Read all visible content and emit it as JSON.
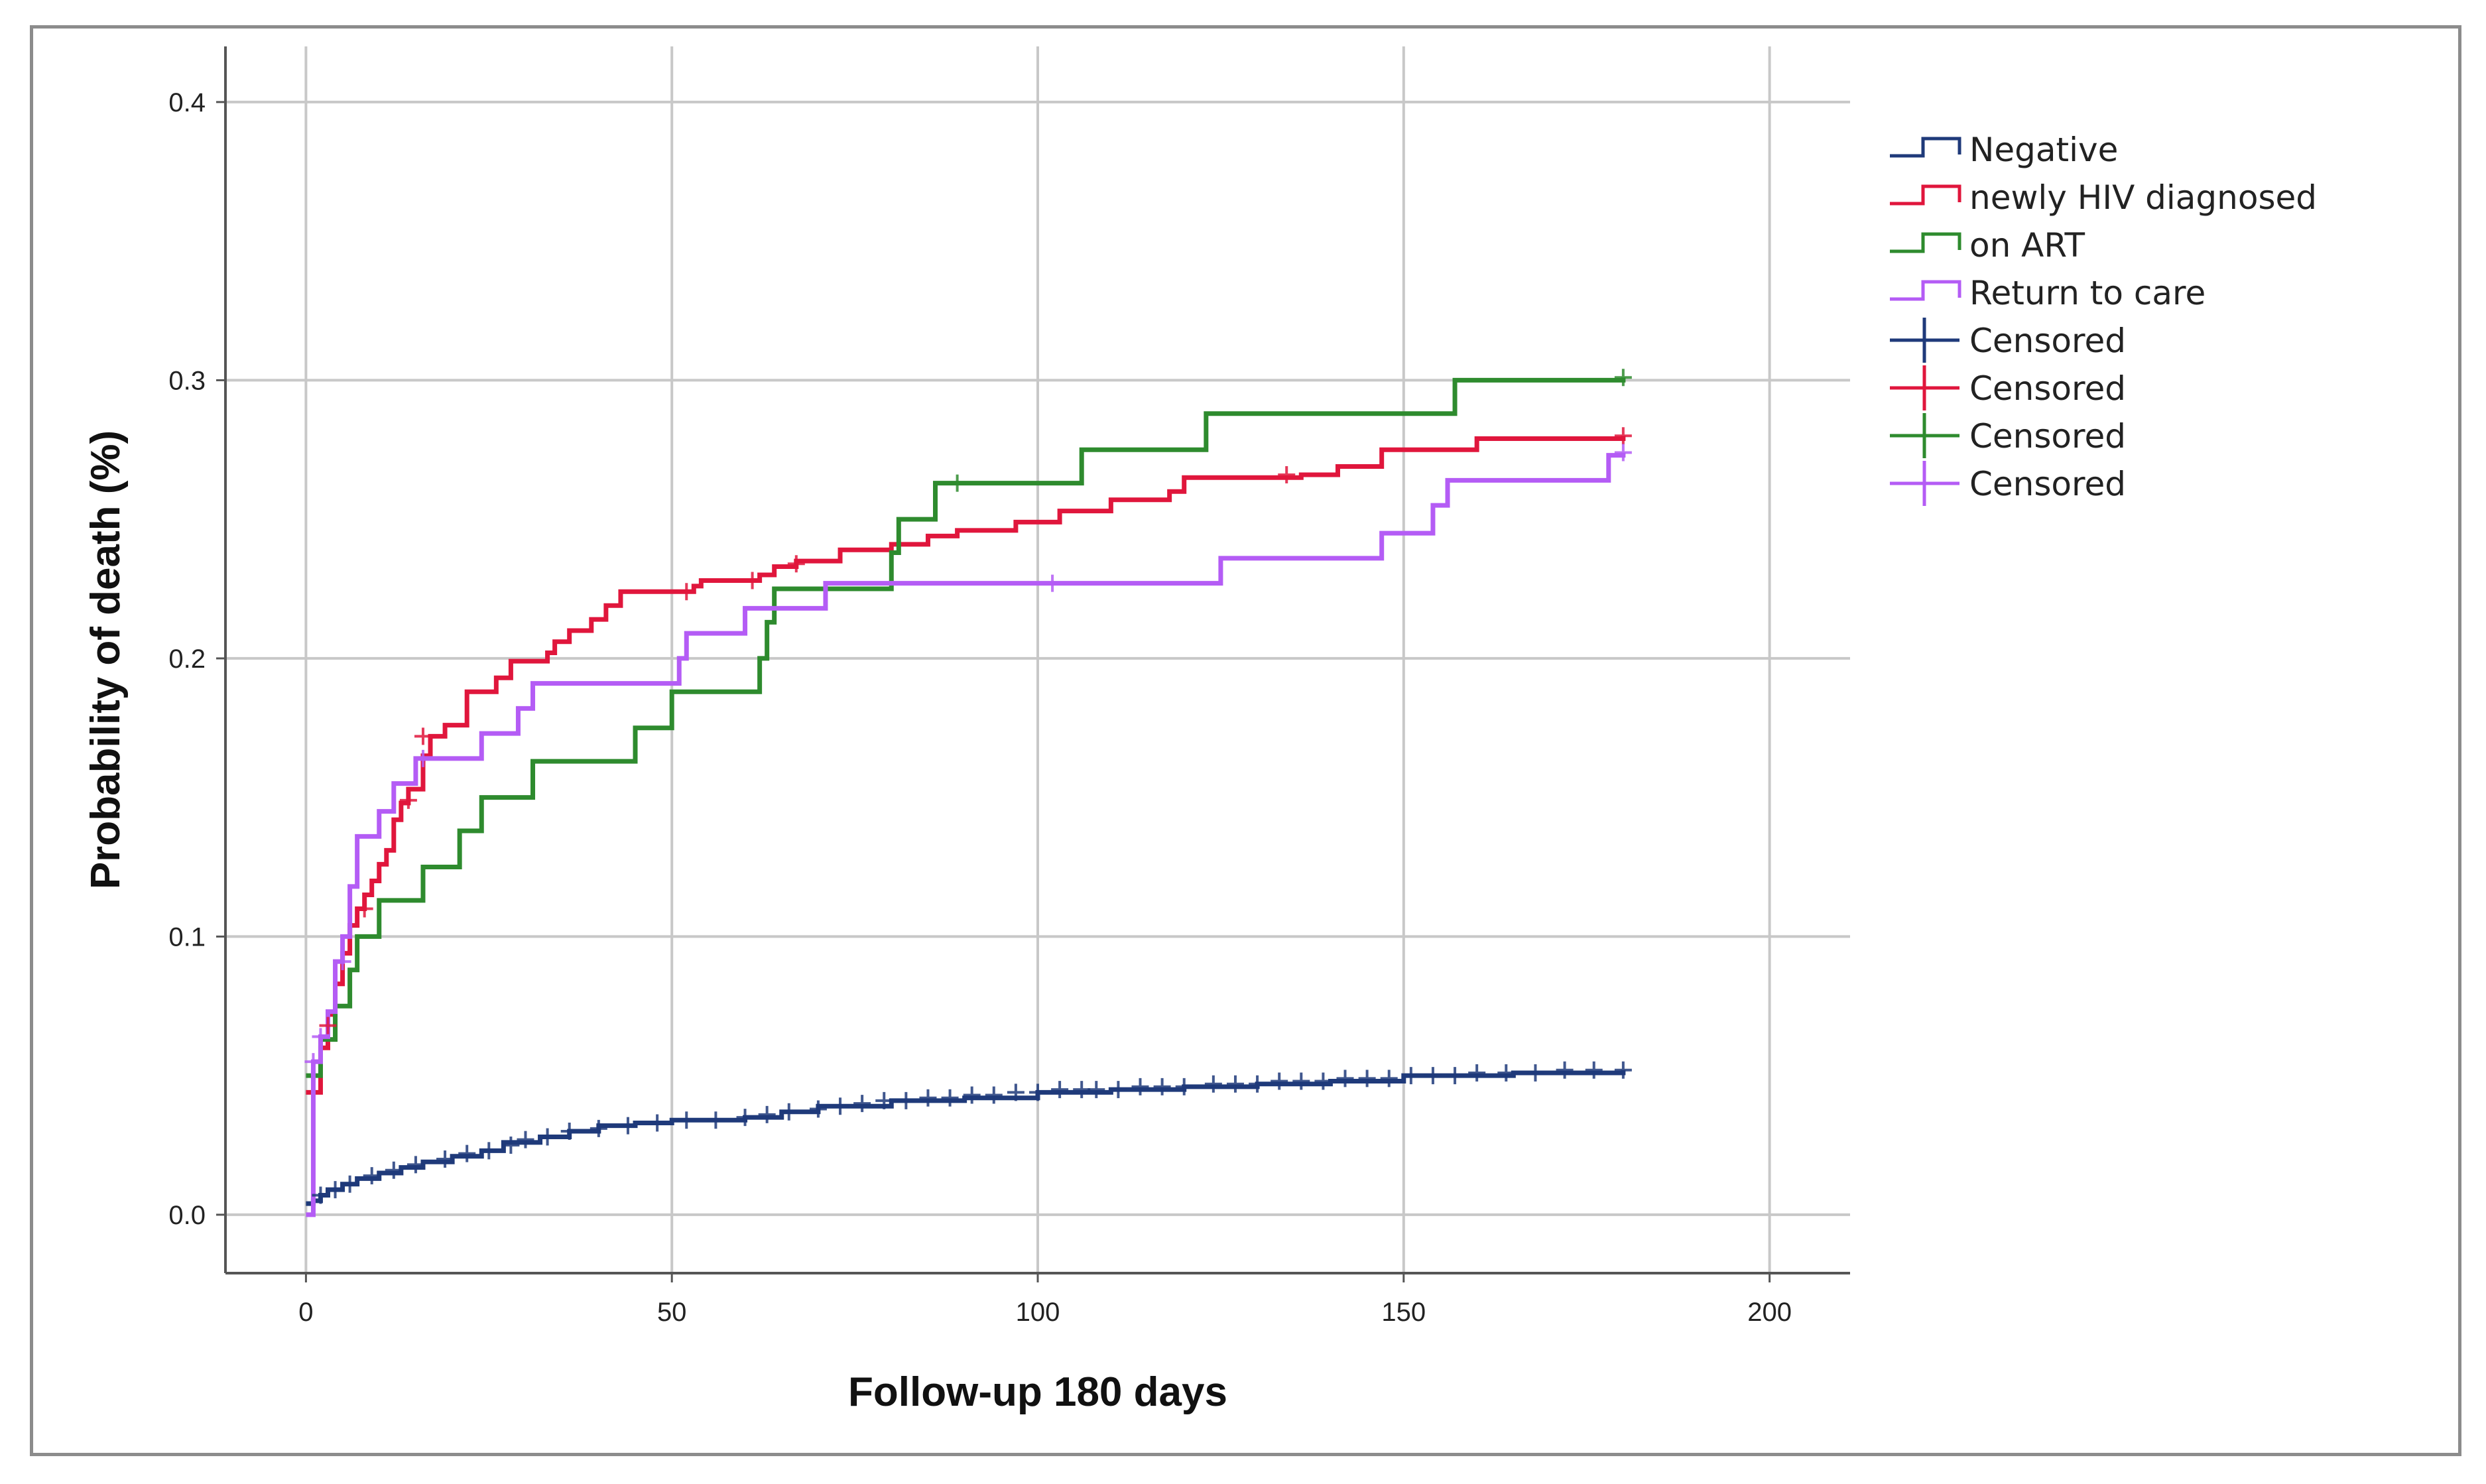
{
  "chart_data": {
    "type": "line",
    "subtype": "kaplan-meier-step",
    "xlabel": "Follow-up 180 days",
    "ylabel": "Probability of death (%)",
    "xlim": [
      -11,
      211
    ],
    "ylim": [
      -0.021,
      0.42
    ],
    "xticks": [
      0,
      50,
      100,
      150,
      200
    ],
    "yticks": [
      0.0,
      0.1,
      0.2,
      0.3,
      0.4
    ],
    "xtick_labels": [
      "0",
      "50",
      "100",
      "150",
      "200"
    ],
    "ytick_labels": [
      "0.0",
      "0.1",
      "0.2",
      "0.3",
      "0.4"
    ],
    "grid": true,
    "legend_position": "right",
    "legend": [
      {
        "label": "Negative",
        "kind": "line",
        "color": "#1f3a7a"
      },
      {
        "label": "newly HIV diagnosed",
        "kind": "line",
        "color": "#e0163c"
      },
      {
        "label": "on ART",
        "kind": "line",
        "color": "#2e8b2e"
      },
      {
        "label": "Return to care",
        "kind": "line",
        "color": "#b45cf5"
      },
      {
        "label": "Censored",
        "kind": "censor",
        "color": "#1f3a7a"
      },
      {
        "label": "Censored",
        "kind": "censor",
        "color": "#e0163c"
      },
      {
        "label": "Censored",
        "kind": "censor",
        "color": "#2e8b2e"
      },
      {
        "label": "Censored",
        "kind": "censor",
        "color": "#b45cf5"
      }
    ],
    "series": [
      {
        "name": "Negative",
        "color": "#1f3a7a",
        "points": [
          [
            0,
            0.004
          ],
          [
            1,
            0.005
          ],
          [
            2,
            0.007
          ],
          [
            3,
            0.009
          ],
          [
            5,
            0.011
          ],
          [
            7,
            0.013
          ],
          [
            10,
            0.015
          ],
          [
            13,
            0.017
          ],
          [
            16,
            0.019
          ],
          [
            20,
            0.021
          ],
          [
            24,
            0.023
          ],
          [
            27,
            0.026
          ],
          [
            32,
            0.028
          ],
          [
            36,
            0.03
          ],
          [
            40,
            0.032
          ],
          [
            45,
            0.033
          ],
          [
            50,
            0.034
          ],
          [
            60,
            0.035
          ],
          [
            65,
            0.037
          ],
          [
            70,
            0.039
          ],
          [
            80,
            0.041
          ],
          [
            90,
            0.042
          ],
          [
            100,
            0.044
          ],
          [
            110,
            0.045
          ],
          [
            120,
            0.046
          ],
          [
            130,
            0.047
          ],
          [
            140,
            0.048
          ],
          [
            150,
            0.05
          ],
          [
            165,
            0.051
          ],
          [
            180,
            0.052
          ]
        ],
        "censored_x": [
          2,
          4,
          6,
          9,
          12,
          15,
          19,
          22,
          25,
          28,
          30,
          33,
          36,
          40,
          44,
          48,
          52,
          56,
          60,
          63,
          66,
          70,
          73,
          76,
          79,
          82,
          85,
          88,
          91,
          94,
          97,
          100,
          103,
          106,
          108,
          111,
          114,
          117,
          120,
          124,
          127,
          130,
          133,
          136,
          139,
          142,
          145,
          148,
          151,
          154,
          157,
          160,
          164,
          168,
          172,
          176,
          180
        ],
        "censored_y": [
          0.007,
          0.009,
          0.011,
          0.014,
          0.016,
          0.018,
          0.02,
          0.022,
          0.023,
          0.025,
          0.027,
          0.028,
          0.03,
          0.031,
          0.032,
          0.033,
          0.034,
          0.034,
          0.035,
          0.036,
          0.037,
          0.038,
          0.039,
          0.04,
          0.041,
          0.041,
          0.042,
          0.042,
          0.043,
          0.043,
          0.044,
          0.044,
          0.045,
          0.045,
          0.045,
          0.045,
          0.046,
          0.046,
          0.046,
          0.047,
          0.047,
          0.047,
          0.048,
          0.048,
          0.048,
          0.049,
          0.049,
          0.049,
          0.05,
          0.05,
          0.05,
          0.051,
          0.051,
          0.051,
          0.052,
          0.052,
          0.052
        ]
      },
      {
        "name": "newly HIV diagnosed",
        "color": "#e0163c",
        "points": [
          [
            0,
            0.044
          ],
          [
            2,
            0.06
          ],
          [
            3,
            0.072
          ],
          [
            4,
            0.083
          ],
          [
            5,
            0.094
          ],
          [
            6,
            0.104
          ],
          [
            7,
            0.11
          ],
          [
            8,
            0.115
          ],
          [
            9,
            0.12
          ],
          [
            10,
            0.126
          ],
          [
            11,
            0.131
          ],
          [
            12,
            0.142
          ],
          [
            13,
            0.148
          ],
          [
            14,
            0.153
          ],
          [
            16,
            0.165
          ],
          [
            17,
            0.172
          ],
          [
            19,
            0.176
          ],
          [
            22,
            0.188
          ],
          [
            26,
            0.193
          ],
          [
            28,
            0.199
          ],
          [
            33,
            0.202
          ],
          [
            34,
            0.206
          ],
          [
            36,
            0.21
          ],
          [
            39,
            0.214
          ],
          [
            41,
            0.219
          ],
          [
            43,
            0.224
          ],
          [
            53,
            0.226
          ],
          [
            54,
            0.228
          ],
          [
            62,
            0.23
          ],
          [
            64,
            0.233
          ],
          [
            67,
            0.235
          ],
          [
            73,
            0.239
          ],
          [
            80,
            0.241
          ],
          [
            85,
            0.244
          ],
          [
            89,
            0.246
          ],
          [
            97,
            0.249
          ],
          [
            103,
            0.253
          ],
          [
            110,
            0.257
          ],
          [
            118,
            0.26
          ],
          [
            120,
            0.265
          ],
          [
            136,
            0.266
          ],
          [
            141,
            0.269
          ],
          [
            147,
            0.275
          ],
          [
            160,
            0.279
          ],
          [
            180,
            0.28
          ]
        ],
        "censored_x": [
          3,
          8,
          14,
          16,
          52,
          61,
          67,
          134,
          180
        ],
        "censored_y": [
          0.068,
          0.11,
          0.149,
          0.172,
          0.224,
          0.228,
          0.234,
          0.266,
          0.28
        ]
      },
      {
        "name": "on ART",
        "color": "#2e8b2e",
        "points": [
          [
            0,
            0.05
          ],
          [
            2,
            0.063
          ],
          [
            4,
            0.075
          ],
          [
            6,
            0.088
          ],
          [
            7,
            0.1
          ],
          [
            10,
            0.113
          ],
          [
            16,
            0.125
          ],
          [
            21,
            0.138
          ],
          [
            24,
            0.15
          ],
          [
            31,
            0.163
          ],
          [
            45,
            0.175
          ],
          [
            50,
            0.188
          ],
          [
            62,
            0.2
          ],
          [
            63,
            0.213
          ],
          [
            64,
            0.225
          ],
          [
            80,
            0.238
          ],
          [
            81,
            0.25
          ],
          [
            86,
            0.263
          ],
          [
            106,
            0.275
          ],
          [
            123,
            0.288
          ],
          [
            157,
            0.3
          ],
          [
            180,
            0.301
          ]
        ],
        "censored_x": [
          89,
          180
        ],
        "censored_y": [
          0.263,
          0.301
        ]
      },
      {
        "name": "Return to care",
        "color": "#b45cf5",
        "points": [
          [
            0,
            0.0
          ],
          [
            1,
            0.055
          ],
          [
            2,
            0.064
          ],
          [
            3,
            0.073
          ],
          [
            4,
            0.091
          ],
          [
            5,
            0.1
          ],
          [
            6,
            0.118
          ],
          [
            7,
            0.136
          ],
          [
            10,
            0.145
          ],
          [
            12,
            0.155
          ],
          [
            15,
            0.164
          ],
          [
            24,
            0.173
          ],
          [
            29,
            0.182
          ],
          [
            31,
            0.191
          ],
          [
            51,
            0.2
          ],
          [
            52,
            0.209
          ],
          [
            60,
            0.218
          ],
          [
            71,
            0.227
          ],
          [
            125,
            0.236
          ],
          [
            147,
            0.245
          ],
          [
            154,
            0.255
          ],
          [
            156,
            0.264
          ],
          [
            178,
            0.273
          ],
          [
            180,
            0.274
          ]
        ],
        "censored_x": [
          1,
          2,
          5,
          16,
          102,
          180
        ],
        "censored_y": [
          0.055,
          0.064,
          0.091,
          0.164,
          0.227,
          0.274
        ]
      }
    ]
  }
}
